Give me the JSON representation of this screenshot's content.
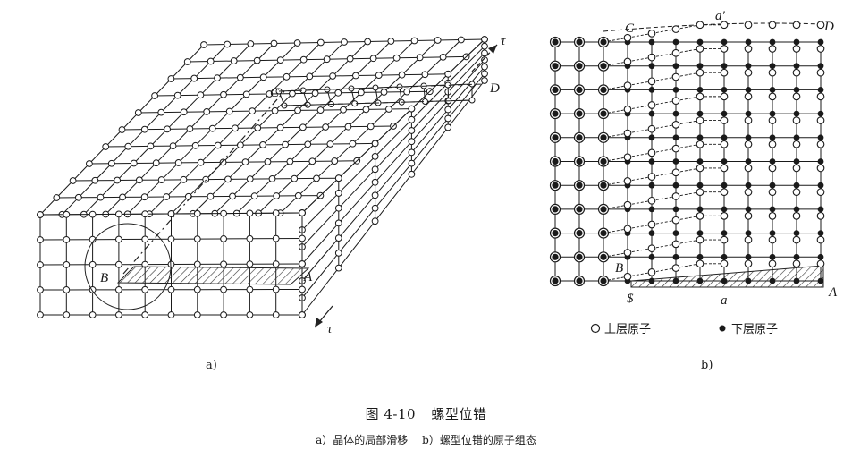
{
  "figure": {
    "number": "图 4-10",
    "title": "螺型位错",
    "subcaption_a": "a）晶体的局部滑移",
    "subcaption_b": "b）螺型位错的原子组态"
  },
  "panel_a": {
    "label": "a)",
    "points": {
      "B": "B",
      "A": "A",
      "C": "C",
      "D": "D"
    },
    "shear_stress": "τ"
  },
  "panel_b": {
    "label": "b)",
    "points": {
      "C": "C",
      "a_prime": "a′",
      "D": "D",
      "B": "B",
      "S": "$",
      "a": "a",
      "A": "A"
    },
    "legend": {
      "upper": "上层原子",
      "lower": "下层原子"
    }
  },
  "colors": {
    "ink": "#1a1a1a",
    "hatch": "#333333",
    "background": "#ffffff"
  }
}
